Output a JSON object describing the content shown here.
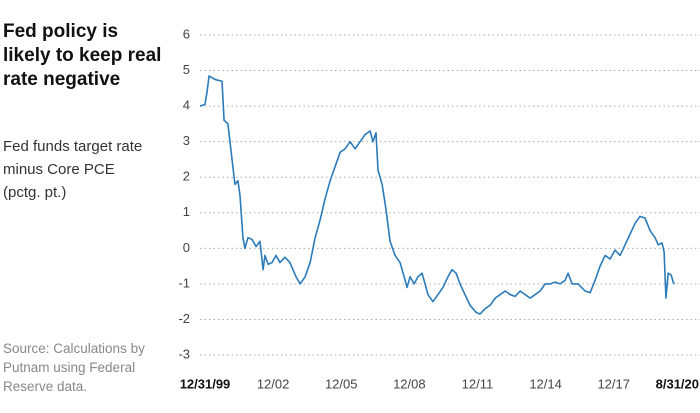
{
  "chart_data": {
    "type": "line",
    "title": "Fed policy is likely to keep real rate negative",
    "subtitle": "Fed funds target rate minus Core PCE (pctg. pt.)",
    "source": "Source: Calculations by Putnam using Federal Reserve data.",
    "x": [
      1999.78,
      2000.0,
      2000.09,
      2000.18,
      2000.44,
      2000.75,
      2000.84,
      2001.01,
      2001.19,
      2001.32,
      2001.45,
      2001.54,
      2001.67,
      2001.76,
      2001.89,
      2002.07,
      2002.25,
      2002.42,
      2002.56,
      2002.64,
      2002.78,
      2002.95,
      2003.13,
      2003.3,
      2003.52,
      2003.74,
      2004.01,
      2004.19,
      2004.41,
      2004.63,
      2004.85,
      2005.07,
      2005.29,
      2005.51,
      2005.73,
      2005.95,
      2006.17,
      2006.39,
      2006.61,
      2006.83,
      2007.05,
      2007.27,
      2007.4,
      2007.53,
      2007.62,
      2007.8,
      2007.97,
      2008.15,
      2008.37,
      2008.59,
      2008.77,
      2008.9,
      2009.03,
      2009.21,
      2009.38,
      2009.56,
      2009.82,
      2010.04,
      2010.26,
      2010.48,
      2010.7,
      2010.88,
      2011.06,
      2011.23,
      2011.45,
      2011.67,
      2011.94,
      2012.11,
      2012.33,
      2012.56,
      2012.78,
      2013.0,
      2013.22,
      2013.44,
      2013.66,
      2013.88,
      2014.1,
      2014.32,
      2014.54,
      2014.76,
      2014.98,
      2015.2,
      2015.42,
      2015.64,
      2015.86,
      2015.99,
      2016.17,
      2016.43,
      2016.74,
      2016.96,
      2017.18,
      2017.4,
      2017.62,
      2017.84,
      2018.06,
      2018.28,
      2018.5,
      2018.72,
      2018.94,
      2019.16,
      2019.38,
      2019.6,
      2019.82,
      2019.96,
      2020.13,
      2020.22,
      2020.3,
      2020.4,
      2020.53,
      2020.62,
      2020.67
    ],
    "series": [
      {
        "color": "#2b7bba",
        "values": [
          4.0,
          4.05,
          4.4,
          4.85,
          4.75,
          4.7,
          3.6,
          3.5,
          2.5,
          1.8,
          1.9,
          1.5,
          0.3,
          0.0,
          0.3,
          0.25,
          0.05,
          0.2,
          -0.6,
          -0.2,
          -0.45,
          -0.4,
          -0.2,
          -0.4,
          -0.25,
          -0.4,
          -0.8,
          -1.0,
          -0.8,
          -0.4,
          0.3,
          0.8,
          1.4,
          1.9,
          2.3,
          2.7,
          2.8,
          3.0,
          2.8,
          3.0,
          3.2,
          3.3,
          3.0,
          3.25,
          2.2,
          1.8,
          1.1,
          0.2,
          -0.2,
          -0.4,
          -0.8,
          -1.1,
          -0.8,
          -1.0,
          -0.8,
          -0.7,
          -1.3,
          -1.5,
          -1.3,
          -1.1,
          -0.8,
          -0.6,
          -0.7,
          -1.0,
          -1.3,
          -1.6,
          -1.8,
          -1.85,
          -1.7,
          -1.6,
          -1.4,
          -1.3,
          -1.2,
          -1.3,
          -1.35,
          -1.2,
          -1.3,
          -1.4,
          -1.3,
          -1.2,
          -1.0,
          -1.0,
          -0.95,
          -1.0,
          -0.9,
          -0.7,
          -1.0,
          -1.0,
          -1.2,
          -1.25,
          -0.9,
          -0.5,
          -0.2,
          -0.3,
          -0.05,
          -0.2,
          0.1,
          0.4,
          0.7,
          0.9,
          0.85,
          0.5,
          0.3,
          0.1,
          0.15,
          -0.1,
          -1.4,
          -0.7,
          -0.75,
          -0.95,
          -1.0
        ]
      }
    ],
    "xlim": [
      1999.78,
      2021.8
    ],
    "xticks": [
      {
        "value": 2000.0,
        "label": "12/31/99"
      },
      {
        "value": 2003.0,
        "label": "12/02"
      },
      {
        "value": 2006.0,
        "label": "12/05"
      },
      {
        "value": 2009.0,
        "label": "12/08"
      },
      {
        "value": 2012.0,
        "label": "12/11"
      },
      {
        "value": 2015.0,
        "label": "12/14"
      },
      {
        "value": 2018.0,
        "label": "12/17"
      },
      {
        "value": 2020.67,
        "label": "8/31/20"
      }
    ],
    "ylim": [
      -3,
      6
    ],
    "yticks": [
      6,
      5,
      4,
      3,
      2,
      1,
      0,
      -1,
      -2,
      -3
    ],
    "grid": true
  }
}
